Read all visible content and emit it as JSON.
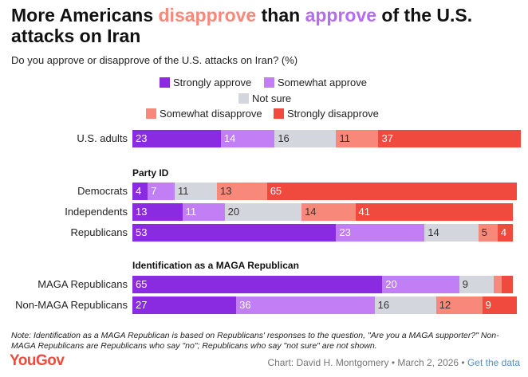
{
  "header": {
    "title_part1": "More Americans ",
    "title_disapprove": "disapprove",
    "title_part2": " than ",
    "title_approve": "approve",
    "title_part3": " of the U.S. attacks on Iran",
    "subtitle": "Do you approve or disapprove of the U.S. attacks on Iran? (%)"
  },
  "legend": [
    {
      "label": "Strongly approve",
      "color": "#8a2be2"
    },
    {
      "label": "Somewhat approve",
      "color": "#c17ef5"
    },
    {
      "label": "Not sure",
      "color": "#d3d6dd"
    },
    {
      "label": "Somewhat disapprove",
      "color": "#f8887a"
    },
    {
      "label": "Strongly disapprove",
      "color": "#f04a3e"
    }
  ],
  "chart_data": {
    "type": "bar",
    "orientation": "horizontal",
    "stacked": true,
    "xlim": [
      0,
      100
    ],
    "series_names": [
      "Strongly approve",
      "Somewhat approve",
      "Not sure",
      "Somewhat disapprove",
      "Strongly disapprove"
    ],
    "colors": [
      "#8a2be2",
      "#c17ef5",
      "#d3d6dd",
      "#f8887a",
      "#f04a3e"
    ],
    "groups": [
      {
        "title": "",
        "rows": [
          {
            "label": "U.S. adults",
            "values": [
              23,
              14,
              16,
              11,
              37
            ]
          }
        ]
      },
      {
        "title": "Party ID",
        "rows": [
          {
            "label": "Democrats",
            "values": [
              4,
              7,
              11,
              13,
              65
            ]
          },
          {
            "label": "Independents",
            "values": [
              13,
              11,
              20,
              14,
              41
            ]
          },
          {
            "label": "Republicans",
            "values": [
              53,
              23,
              14,
              5,
              4
            ]
          }
        ]
      },
      {
        "title": "Identification as a MAGA Republican",
        "rows": [
          {
            "label": "MAGA Republicans",
            "values": [
              65,
              20,
              9,
              2,
              3
            ],
            "shown_labels": [
              "65",
              "20",
              "9",
              "",
              ""
            ]
          },
          {
            "label": "Non-MAGA Republicans",
            "values": [
              27,
              36,
              16,
              12,
              9
            ]
          }
        ]
      }
    ]
  },
  "footer": {
    "note": "Note: Identification as a MAGA Republican is based on Republicans' responses to the question, \"Are you a MAGA supporter?\" Non-MAGA Republicans are Republicans who say \"no\"; Republicans who say \"not sure\" are not shown.",
    "logo": "YouGov",
    "credit": "Chart: David H. Montgomery • March 2, 2026 • ",
    "link": "Get the data"
  }
}
